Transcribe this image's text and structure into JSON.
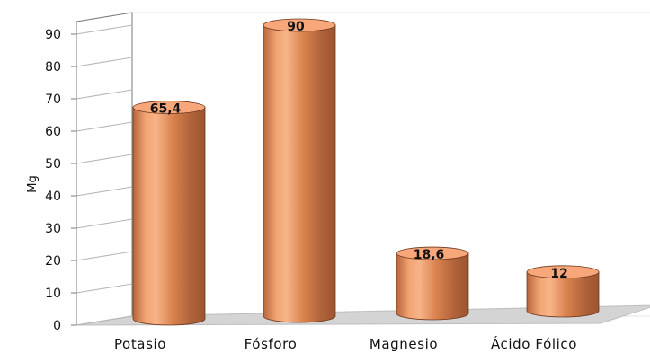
{
  "chart_data": {
    "type": "bar",
    "style": "3d-cylinder",
    "categories": [
      "Potasio",
      "Fósforo",
      "Magnesio",
      "Ácido Fólico"
    ],
    "values": [
      65.4,
      90,
      18.6,
      12
    ],
    "data_labels": [
      "65,4",
      "90",
      "18,6",
      "12"
    ],
    "ylabel": "Mg",
    "ylim": [
      0,
      90
    ],
    "yticks": [
      "0",
      "10",
      "20",
      "30",
      "40",
      "50",
      "60",
      "70",
      "80",
      "90"
    ],
    "grid": false,
    "legend": "none",
    "colors": {
      "bar_light": "#f6a878",
      "bar_mid": "#d9804f",
      "bar_dark": "#a9582f",
      "bar_top": "#f7a77a",
      "floor": "#d4d4d4",
      "wall": "#ffffff",
      "axis": "#7a7a7a"
    }
  }
}
